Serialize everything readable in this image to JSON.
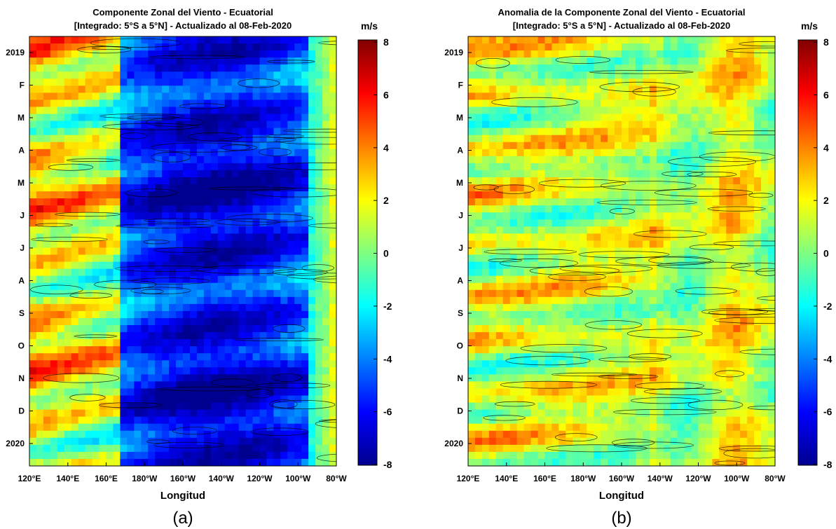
{
  "colors": {
    "colormap": [
      "#00008f",
      "#0000ff",
      "#0080ff",
      "#00ffff",
      "#80ff80",
      "#ffff00",
      "#ff8000",
      "#ff0000",
      "#800000"
    ]
  },
  "chart_data": [
    {
      "type": "heatmap",
      "panel_label": "(a)",
      "title_line1": "Componente Zonal del Viento - Ecuatorial",
      "title_line2": "[Integrado: 5°S a 5°N] - Actualizado al 08-Feb-2020",
      "xlabel": "Longitud",
      "x_tick_labels": [
        "120°E",
        "140°E",
        "160°E",
        "180°W",
        "160°W",
        "140°W",
        "120°W",
        "100°W",
        "80°W"
      ],
      "y_tick_labels": [
        "2019",
        "F",
        "M",
        "A",
        "M",
        "J",
        "J",
        "A",
        "S",
        "O",
        "N",
        "D",
        "2020"
      ],
      "colorbar_unit": "m/s",
      "colorbar_ticks": [
        "8",
        "6",
        "4",
        "2",
        "0",
        "-2",
        "-4",
        "-6",
        "-8"
      ],
      "colorbar_range": [
        -8,
        8
      ],
      "contours": true
    },
    {
      "type": "heatmap",
      "panel_label": "(b)",
      "title_line1": "Anomalia de la Componente Zonal del Viento - Ecuatorial",
      "title_line2": "[Integrado: 5°S a 5°N] - Actualizado al 08-Feb-2020",
      "xlabel": "Longitud",
      "x_tick_labels": [
        "120°E",
        "140°E",
        "160°E",
        "180°W",
        "160°W",
        "140°W",
        "120°W",
        "100°W",
        "80°W"
      ],
      "y_tick_labels": [
        "2019",
        "F",
        "M",
        "A",
        "M",
        "J",
        "J",
        "A",
        "S",
        "O",
        "N",
        "D",
        "2020"
      ],
      "colorbar_unit": "m/s",
      "colorbar_ticks": [
        "8",
        "6",
        "4",
        "2",
        "0",
        "-2",
        "-4",
        "-6",
        "-8"
      ],
      "colorbar_range": [
        -8,
        8
      ],
      "contours": true
    }
  ]
}
